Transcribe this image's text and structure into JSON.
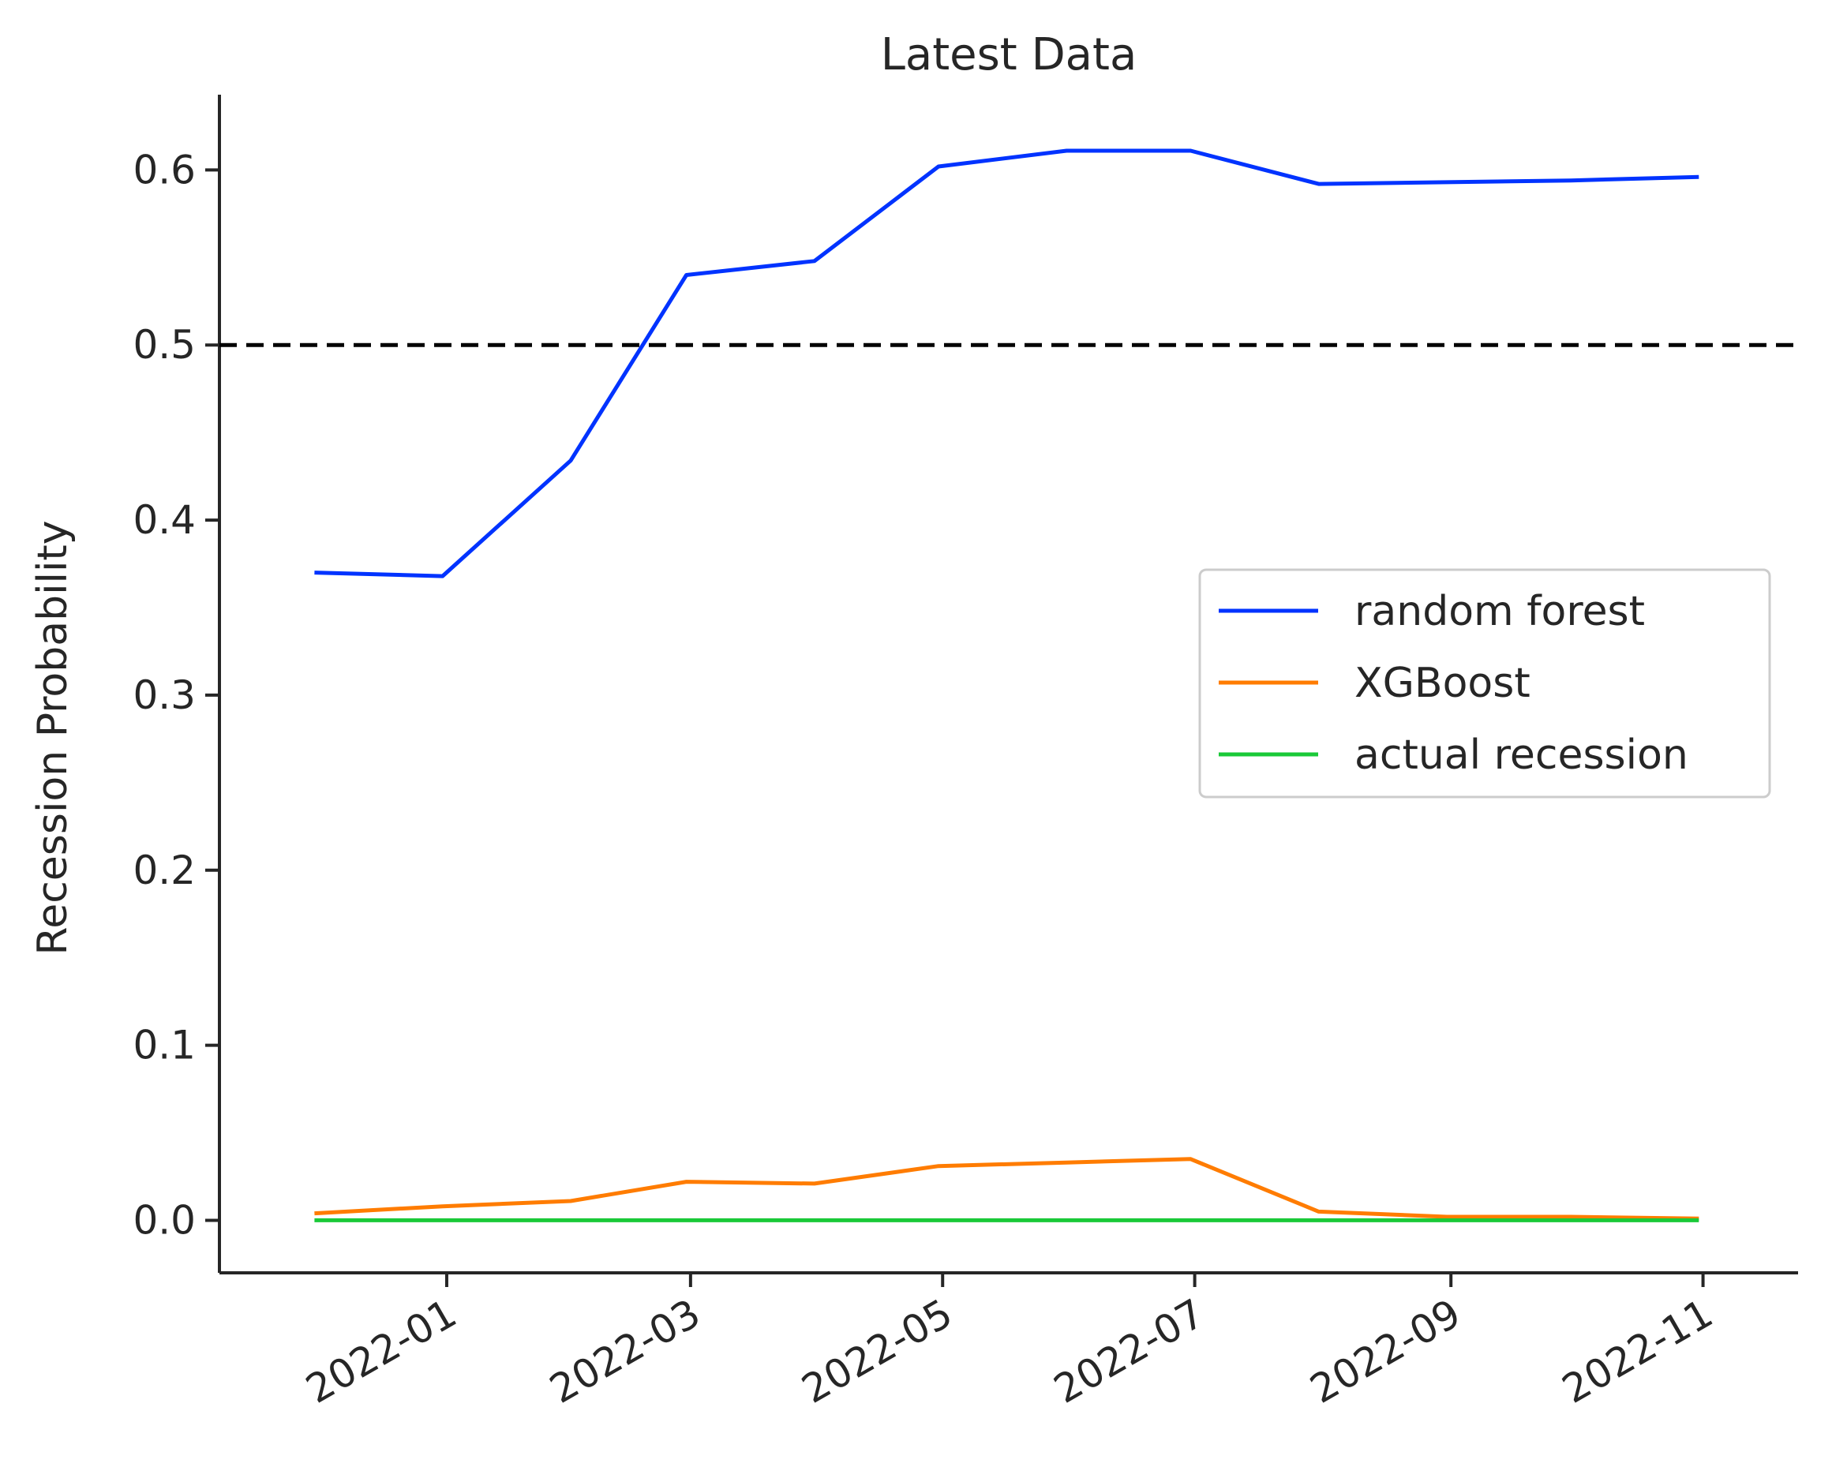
{
  "chart_data": {
    "type": "line",
    "title": "Latest Data",
    "xlabel": "",
    "ylabel": "Recession Probability",
    "x": [
      "2021-11-30",
      "2021-12-31",
      "2022-01-31",
      "2022-02-28",
      "2022-03-31",
      "2022-04-30",
      "2022-05-31",
      "2022-06-30",
      "2022-07-31",
      "2022-08-31",
      "2022-09-30",
      "2022-10-31"
    ],
    "series": [
      {
        "name": "random forest",
        "color": "#0033ff",
        "values": [
          0.37,
          0.368,
          0.434,
          0.54,
          0.548,
          0.602,
          0.611,
          0.611,
          0.592,
          0.593,
          0.594,
          0.596
        ]
      },
      {
        "name": "XGBoost",
        "color": "#ff7c00",
        "values": [
          0.004,
          0.008,
          0.011,
          0.022,
          0.021,
          0.031,
          0.033,
          0.035,
          0.005,
          0.002,
          0.002,
          0.001
        ]
      },
      {
        "name": "actual recession",
        "color": "#1ac938",
        "values": [
          0,
          0,
          0,
          0,
          0,
          0,
          0,
          0,
          0,
          0,
          0,
          0
        ]
      }
    ],
    "reference_line": {
      "y": 0.5,
      "style": "dashed",
      "color": "#000000"
    },
    "x_ticks": [
      "2022-01",
      "2022-03",
      "2022-05",
      "2022-07",
      "2022-09",
      "2022-11"
    ],
    "y_ticks": [
      "0.0",
      "0.1",
      "0.2",
      "0.3",
      "0.4",
      "0.5",
      "0.6"
    ],
    "ylim": [
      -0.03,
      0.643
    ],
    "xlim": [
      "2021-11-07",
      "2022-11-24"
    ],
    "grid": false,
    "legend_position": "center-right"
  }
}
